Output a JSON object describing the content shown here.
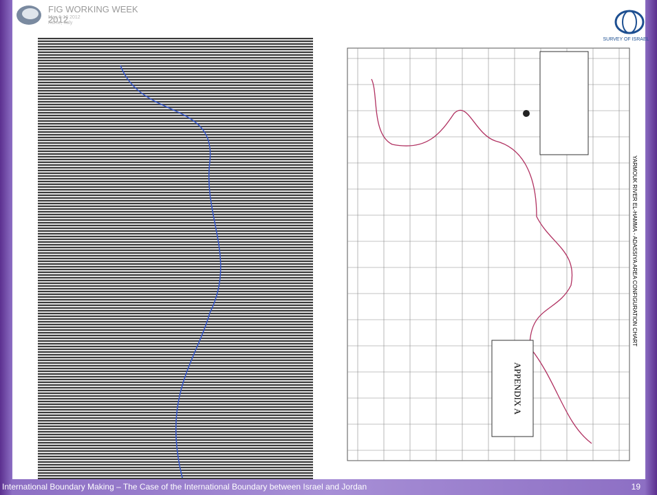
{
  "header": {
    "event": "FIG WORKING WEEK 2012",
    "dates": "May 6-10 2012",
    "location": "Rome, Italy"
  },
  "logo": {
    "text": "SURVEY OF ISRAEL"
  },
  "map": {
    "title": "YARMOUK RIVER EL-HAMMA - ADASSIYA AREA CONFIGURATION CHART",
    "appendix": "APPENDIX A"
  },
  "footer": {
    "caption": "International Boundary Making – The Case of the International Boundary between Israel and Jordan",
    "page": "19"
  }
}
